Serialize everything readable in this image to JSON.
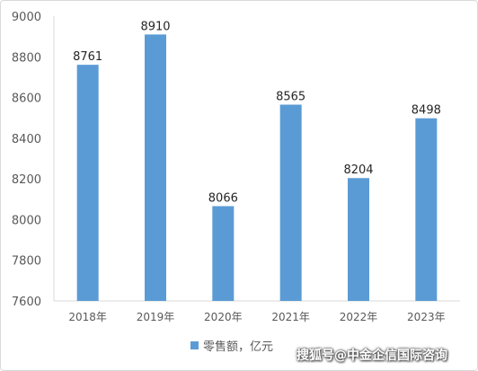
{
  "chart_data": {
    "type": "bar",
    "categories": [
      "2018年",
      "2019年",
      "2020年",
      "2021年",
      "2022年",
      "2023年"
    ],
    "series": [
      {
        "name": "零售额，亿元",
        "values": [
          8761,
          8910,
          8066,
          8565,
          8204,
          8498
        ],
        "color": "#5b9bd5"
      }
    ],
    "ylim": [
      7600,
      9000
    ],
    "yticks": [
      7600,
      7800,
      8000,
      8200,
      8400,
      8600,
      8800,
      9000
    ],
    "grid": false,
    "legend": "bottom",
    "data_labels": true
  },
  "watermark": "搜狐号@中金企信国际咨询"
}
